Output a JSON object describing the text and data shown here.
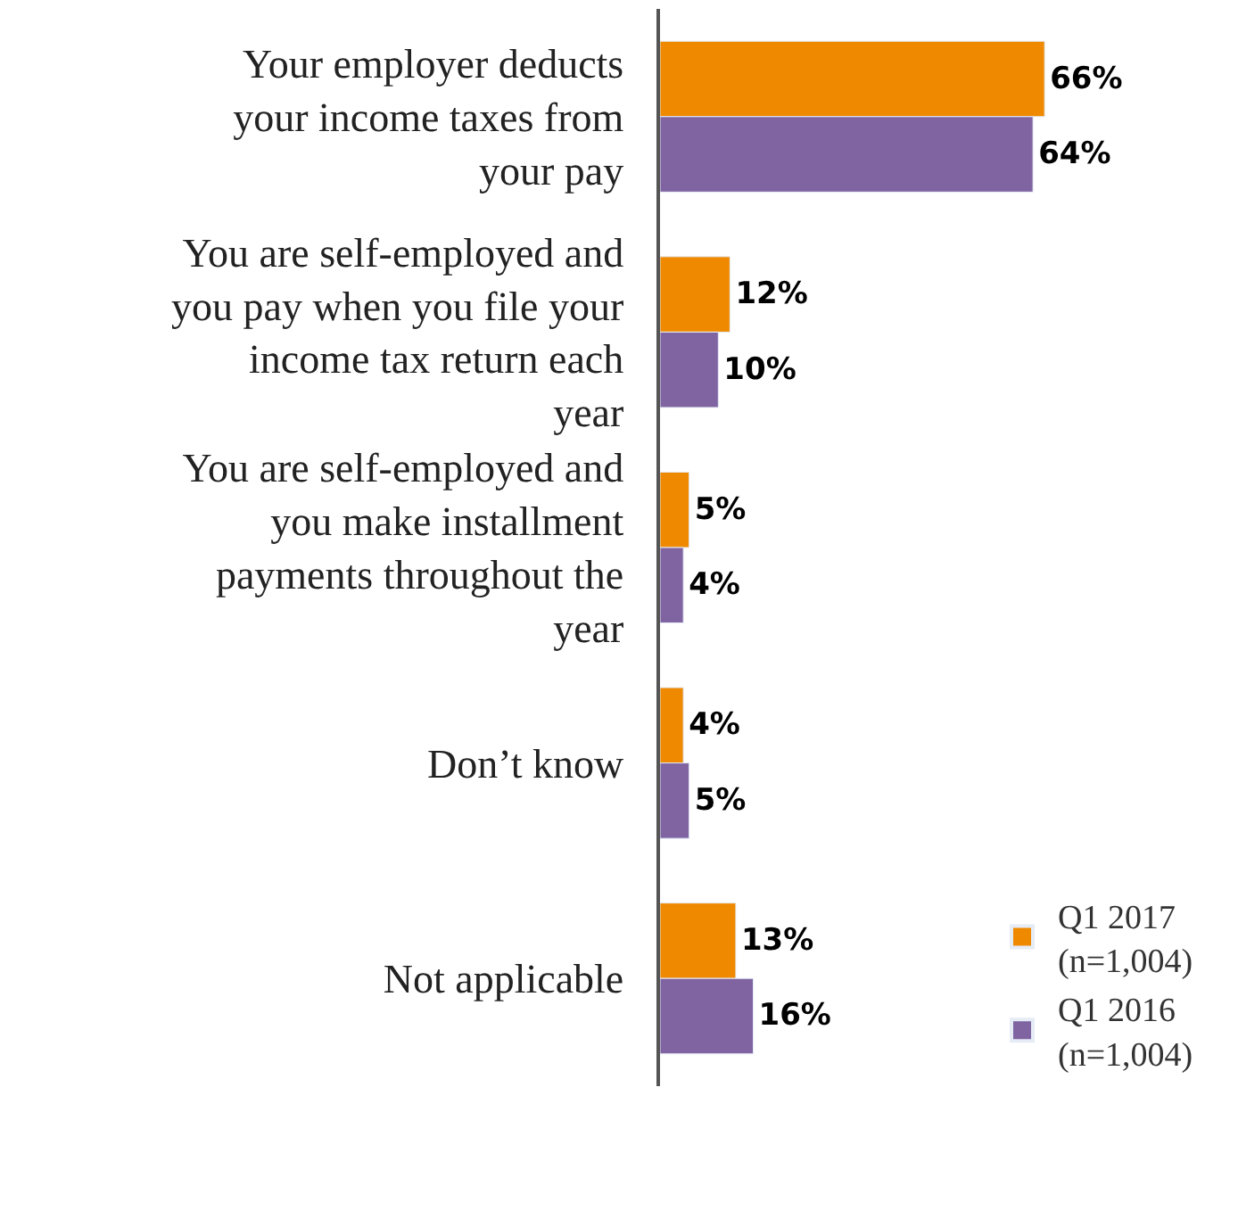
{
  "chart_data": {
    "type": "bar",
    "orientation": "horizontal",
    "categories": [
      "Your employer deducts\nyour income taxes from\nyour pay",
      "You are self-employed and\nyou pay when you file your\nincome tax return each\nyear",
      "You are self-employed and\nyou make installment\npayments throughout the\nyear",
      "Don’t know",
      "Not applicable"
    ],
    "series": [
      {
        "name": "Q1 2017\n(n=1,004)",
        "color": "#ef8a00",
        "values": [
          66,
          12,
          5,
          4,
          13
        ],
        "value_labels": [
          "66%",
          "12%",
          "5%",
          "4%",
          "13%"
        ]
      },
      {
        "name": "Q1 2016\n(n=1,004)",
        "color": "#8064a2",
        "values": [
          64,
          10,
          4,
          5,
          16
        ],
        "value_labels": [
          "64%",
          "10%",
          "4%",
          "5%",
          "16%"
        ]
      }
    ],
    "tick_labels": "y",
    "legend": "bottom right"
  }
}
